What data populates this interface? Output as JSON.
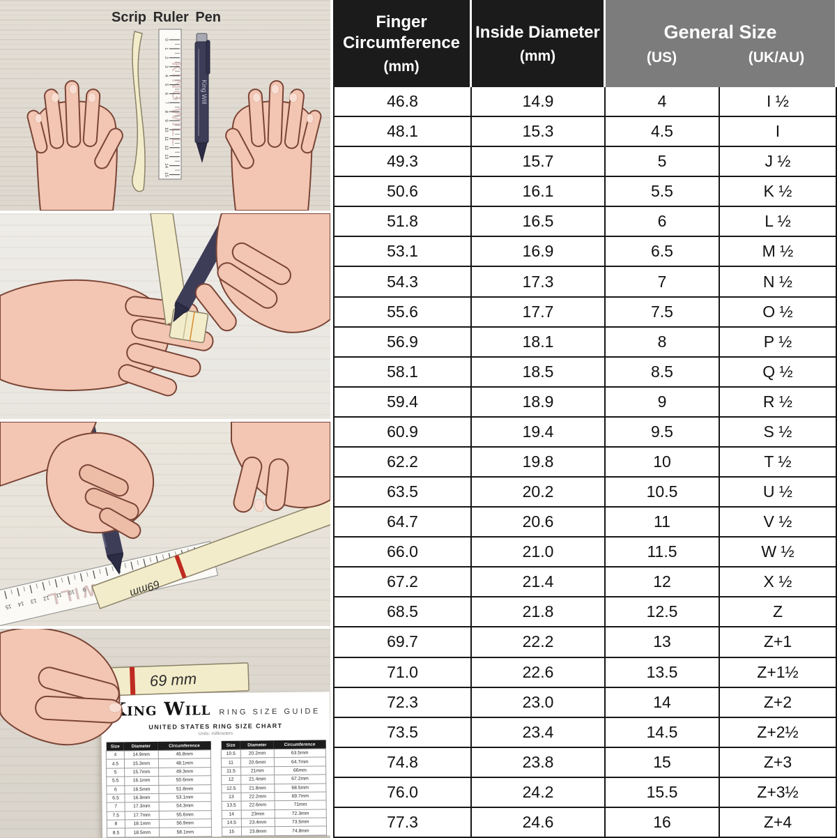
{
  "colors": {
    "header_black": "#1b1b1b",
    "header_gray": "#7c7c7c",
    "table_border": "#161616",
    "wood_background": "#e0dbd2",
    "skin": "#f2c6b2",
    "pen_navy": "#3d3d58",
    "strip_cream": "#f3ecca",
    "red_mark": "#bf2b20",
    "paper_white": "#ffffff"
  },
  "steps": {
    "step1": {
      "labels": [
        "Scrip",
        "Ruler",
        "Pen"
      ],
      "ruler_brand": "KING WILL",
      "pen_brand": "King Will",
      "ruler_numbers": [
        "0",
        "1",
        "2",
        "3",
        "4",
        "5",
        "6",
        "7",
        "8",
        "9",
        "10",
        "11",
        "12",
        "13",
        "14",
        "15"
      ]
    },
    "step3": {
      "pen_brand": "King Will",
      "ruler_brand": "KING WILL",
      "strip_mark": "69mm"
    },
    "step4": {
      "strip_mark": "69 mm",
      "paper": {
        "logo": "King Will",
        "guide_title": "RING SIZE GUIDE",
        "chart_title": "UNITED STATES RING SIZE CHART",
        "units_note": "Units: millimeters",
        "mini_headers": [
          "Size",
          "Diameter",
          "Circumference"
        ],
        "mini_left": [
          [
            "4",
            "14.9mm",
            "46.8mm"
          ],
          [
            "4.5",
            "15.3mm",
            "48.1mm"
          ],
          [
            "5",
            "15.7mm",
            "49.3mm"
          ],
          [
            "5.5",
            "16.1mm",
            "50.6mm"
          ],
          [
            "6",
            "16.5mm",
            "51.8mm"
          ],
          [
            "6.5",
            "16.9mm",
            "53.1mm"
          ],
          [
            "7",
            "17.3mm",
            "54.3mm"
          ],
          [
            "7.5",
            "17.7mm",
            "55.6mm"
          ],
          [
            "8",
            "18.1mm",
            "56.9mm"
          ],
          [
            "8.5",
            "18.5mm",
            "58.1mm"
          ]
        ],
        "mini_right": [
          [
            "10.5",
            "20.2mm",
            "63.5mm"
          ],
          [
            "11",
            "20.6mm",
            "64.7mm"
          ],
          [
            "11.5",
            "21mm",
            "66mm"
          ],
          [
            "12",
            "21.4mm",
            "67.2mm"
          ],
          [
            "12.5",
            "21.8mm",
            "68.5mm"
          ],
          [
            "13",
            "22.2mm",
            "69.7mm"
          ],
          [
            "13.5",
            "22.6mm",
            "71mm"
          ],
          [
            "14",
            "23mm",
            "72.3mm"
          ],
          [
            "14.5",
            "23.4mm",
            "73.5mm"
          ],
          [
            "15",
            "23.8mm",
            "74.8mm"
          ]
        ]
      }
    }
  },
  "size_table": {
    "header": {
      "col1_line1": "Finger",
      "col1_line2": "Circumference",
      "col1_unit": "(mm)",
      "col2_title": "Inside Diameter",
      "col2_unit": "(mm)",
      "col3_title": "General Size",
      "sub_us": "(US)",
      "sub_ukau": "(UK/AU)"
    },
    "rows": [
      [
        "46.8",
        "14.9",
        "4",
        "I ½"
      ],
      [
        "48.1",
        "15.3",
        "4.5",
        "I"
      ],
      [
        "49.3",
        "15.7",
        "5",
        "J ½"
      ],
      [
        "50.6",
        "16.1",
        "5.5",
        "K ½"
      ],
      [
        "51.8",
        "16.5",
        "6",
        "L ½"
      ],
      [
        "53.1",
        "16.9",
        "6.5",
        "M ½"
      ],
      [
        "54.3",
        "17.3",
        "7",
        "N ½"
      ],
      [
        "55.6",
        "17.7",
        "7.5",
        "O ½"
      ],
      [
        "56.9",
        "18.1",
        "8",
        "P ½"
      ],
      [
        "58.1",
        "18.5",
        "8.5",
        "Q ½"
      ],
      [
        "59.4",
        "18.9",
        "9",
        "R ½"
      ],
      [
        "60.9",
        "19.4",
        "9.5",
        "S ½"
      ],
      [
        "62.2",
        "19.8",
        "10",
        "T ½"
      ],
      [
        "63.5",
        "20.2",
        "10.5",
        "U ½"
      ],
      [
        "64.7",
        "20.6",
        "11",
        "V ½"
      ],
      [
        "66.0",
        "21.0",
        "11.5",
        "W ½"
      ],
      [
        "67.2",
        "21.4",
        "12",
        "X ½"
      ],
      [
        "68.5",
        "21.8",
        "12.5",
        "Z"
      ],
      [
        "69.7",
        "22.2",
        "13",
        "Z+1"
      ],
      [
        "71.0",
        "22.6",
        "13.5",
        "Z+1½"
      ],
      [
        "72.3",
        "23.0",
        "14",
        "Z+2"
      ],
      [
        "73.5",
        "23.4",
        "14.5",
        "Z+2½"
      ],
      [
        "74.8",
        "23.8",
        "15",
        "Z+3"
      ],
      [
        "76.0",
        "24.2",
        "15.5",
        "Z+3½"
      ],
      [
        "77.3",
        "24.6",
        "16",
        "Z+4"
      ]
    ]
  }
}
